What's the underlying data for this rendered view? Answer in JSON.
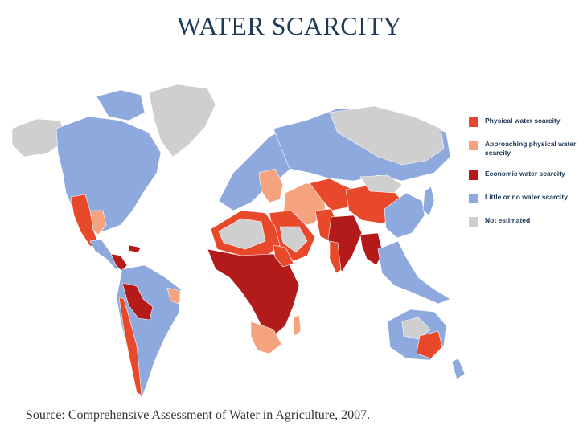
{
  "title": "WATER SCARCITY",
  "source": "Source: Comprehensive Assessment of Water in Agriculture, 2007.",
  "colors": {
    "physical": "#e8492a",
    "approaching": "#f5a27e",
    "economic": "#b31a1a",
    "little": "#8ea9dd",
    "not_estimated": "#cfcfcf",
    "ocean": "#ffffff"
  },
  "legend": [
    {
      "key": "physical",
      "label": "Physical water scarcity"
    },
    {
      "key": "approaching",
      "label": "Approaching physical water scarcity"
    },
    {
      "key": "economic",
      "label": "Economic water scarcity"
    },
    {
      "key": "little",
      "label": "Little or no water scarcity"
    },
    {
      "key": "not_estimated",
      "label": "Not estimated"
    }
  ]
}
